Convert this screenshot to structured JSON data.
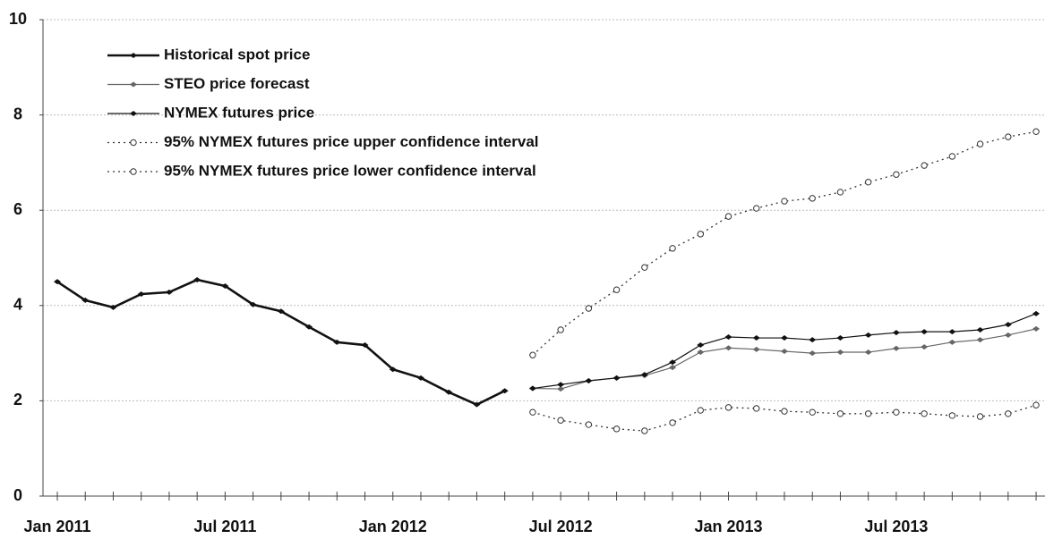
{
  "chart_data": {
    "type": "line",
    "categories": [
      "Jan 2011",
      null,
      null,
      null,
      null,
      null,
      "Jul 2011",
      null,
      null,
      null,
      null,
      null,
      "Jan 2012",
      null,
      null,
      null,
      null,
      null,
      "Jul 2012",
      null,
      null,
      null,
      null,
      null,
      "Jan 2013",
      null,
      null,
      null,
      null,
      null,
      "Jul 2013",
      null,
      null,
      null,
      null,
      null
    ],
    "ylim": [
      0,
      10
    ],
    "yticks": [
      0,
      2,
      4,
      6,
      8,
      10
    ],
    "grid": true,
    "legend": "upper left",
    "series": [
      {
        "name": "Historical spot price",
        "color": "#111111",
        "line_style": "thick",
        "marker": "diamond",
        "values": [
          4.5,
          4.11,
          3.96,
          4.24,
          4.28,
          4.54,
          4.41,
          4.02,
          3.88,
          3.55,
          3.23,
          3.17,
          2.66,
          2.48,
          2.18,
          1.92,
          2.21,
          null,
          null,
          null,
          null,
          null,
          null,
          null,
          null,
          null,
          null,
          null,
          null,
          null,
          null,
          null,
          null,
          null,
          null,
          null
        ]
      },
      {
        "name": "STEO price forecast",
        "color": "#666666",
        "line_style": "thin",
        "marker": "diamond",
        "values": [
          null,
          null,
          null,
          null,
          null,
          null,
          null,
          null,
          null,
          null,
          null,
          null,
          null,
          null,
          null,
          null,
          null,
          2.26,
          2.25,
          2.42,
          2.48,
          2.53,
          2.7,
          3.02,
          3.11,
          3.08,
          3.04,
          3.0,
          3.02,
          3.02,
          3.1,
          3.13,
          3.23,
          3.28,
          3.38,
          3.51
        ]
      },
      {
        "name": "NYMEX futures price",
        "color": "#111111",
        "line_style": "thin",
        "marker": "diamond",
        "values": [
          null,
          null,
          null,
          null,
          null,
          null,
          null,
          null,
          null,
          null,
          null,
          null,
          null,
          null,
          null,
          null,
          null,
          2.26,
          2.34,
          2.42,
          2.48,
          2.55,
          2.81,
          3.17,
          3.34,
          3.32,
          3.32,
          3.28,
          3.32,
          3.38,
          3.43,
          3.45,
          3.45,
          3.49,
          3.6,
          3.83
        ]
      },
      {
        "name": "95% NYMEX futures price upper confidence interval",
        "color": "#333333",
        "line_style": "dotted",
        "marker": "circle",
        "values": [
          null,
          null,
          null,
          null,
          null,
          null,
          null,
          null,
          null,
          null,
          null,
          null,
          null,
          null,
          null,
          null,
          null,
          2.96,
          3.49,
          3.94,
          4.33,
          4.8,
          5.2,
          5.5,
          5.87,
          6.04,
          6.19,
          6.25,
          6.38,
          6.59,
          6.75,
          6.94,
          7.13,
          7.39,
          7.54,
          7.65
        ]
      },
      {
        "name": "95% NYMEX futures price lower confidence interval",
        "color": "#333333",
        "line_style": "dotted",
        "marker": "circle",
        "values": [
          null,
          null,
          null,
          null,
          null,
          null,
          null,
          null,
          null,
          null,
          null,
          null,
          null,
          null,
          null,
          null,
          null,
          1.76,
          1.59,
          1.5,
          1.41,
          1.37,
          1.54,
          1.8,
          1.86,
          1.84,
          1.78,
          1.76,
          1.73,
          1.73,
          1.76,
          1.73,
          1.69,
          1.67,
          1.73,
          1.91
        ]
      }
    ]
  }
}
